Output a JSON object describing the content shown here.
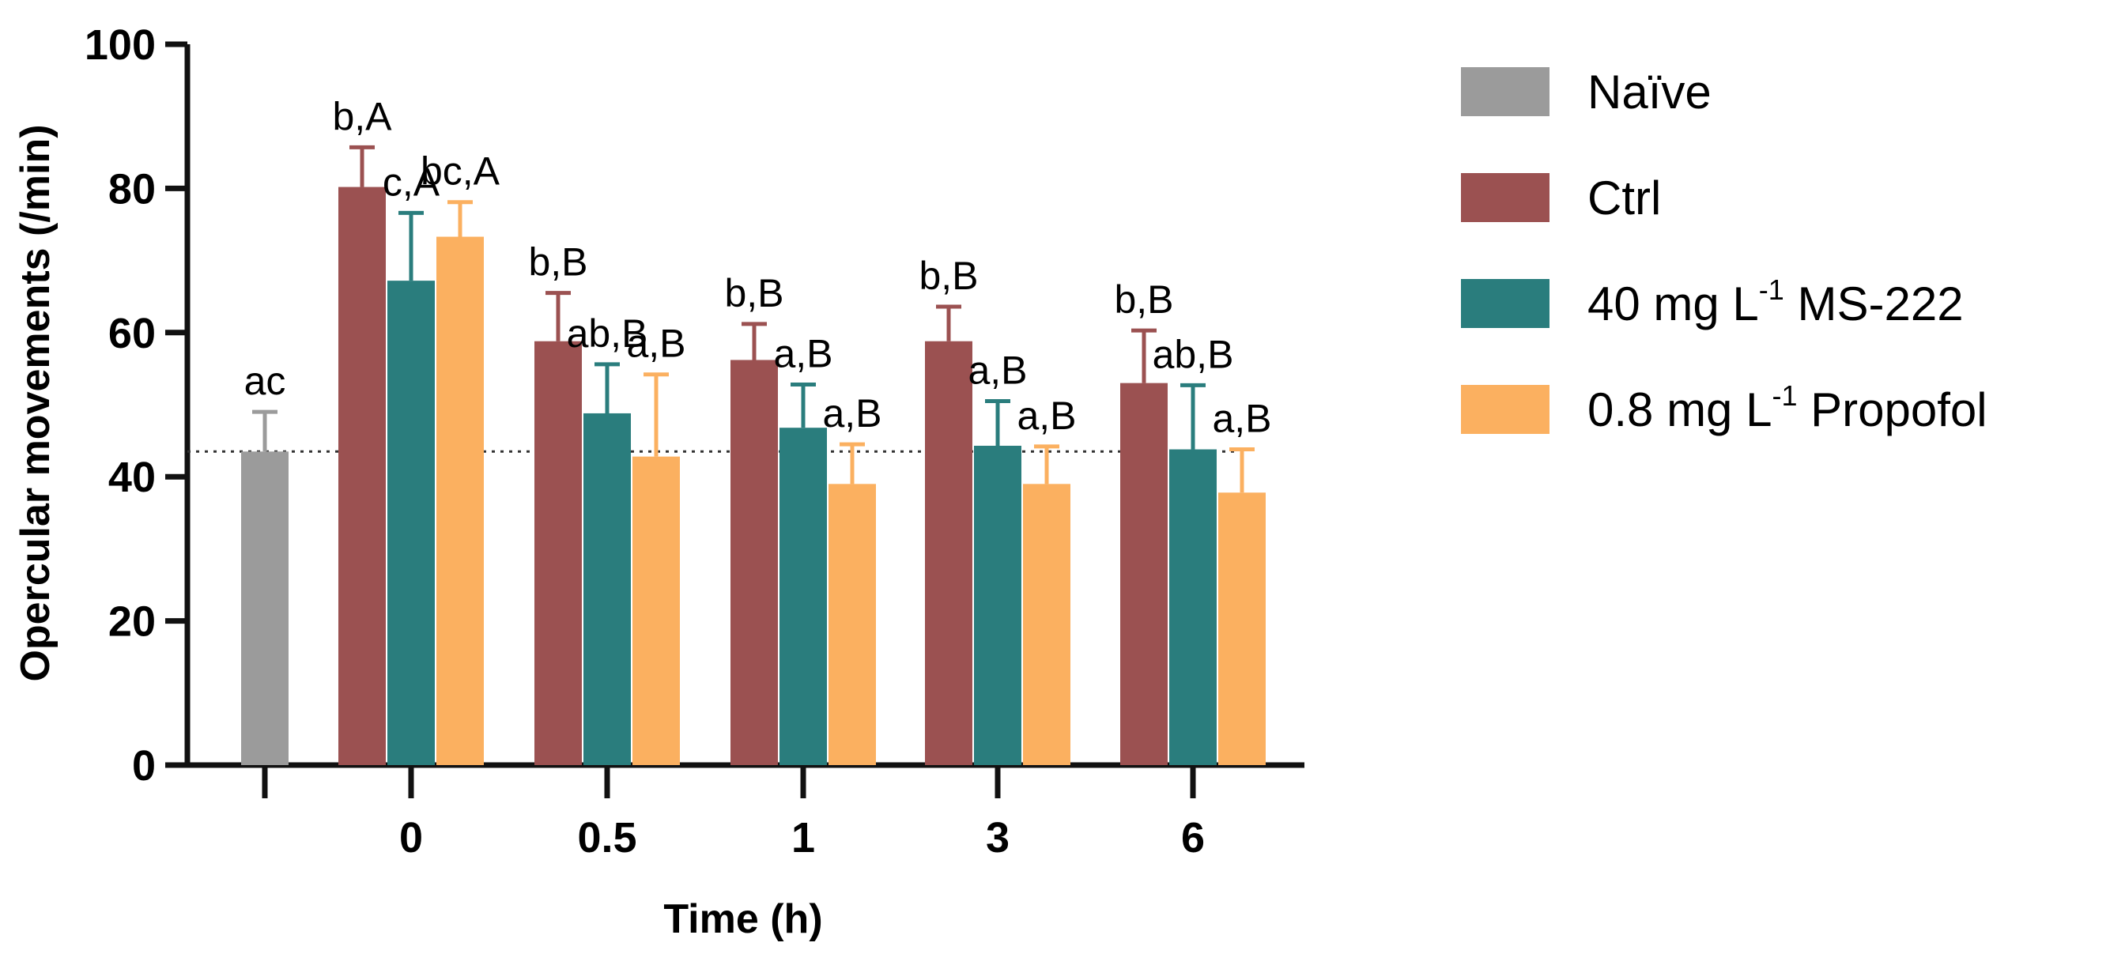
{
  "chart_data": {
    "type": "bar",
    "title": "",
    "xlabel": "Time (h)",
    "ylabel": "Opercular movements (/min)",
    "ylim": [
      0,
      100
    ],
    "yticks": [
      "0",
      "20",
      "40",
      "60",
      "80",
      "100"
    ],
    "categories": [
      "0",
      "0.5",
      "1",
      "3",
      "6"
    ],
    "naive": {
      "name": "Naïve",
      "color": "#9b9b9b",
      "value": 43.5,
      "error": 5.5,
      "label": "ac"
    },
    "reference_line": 43.5,
    "series": [
      {
        "name": "Ctrl",
        "legend_parts": [
          "Ctrl"
        ],
        "color": "#9b5151",
        "values": [
          80.2,
          58.8,
          56.2,
          58.8,
          53.0
        ],
        "errors": [
          5.5,
          6.7,
          5.0,
          4.8,
          7.3
        ],
        "labels": [
          "b,A",
          "b,B",
          "b,B",
          "b,B",
          "b,B"
        ]
      },
      {
        "name": "40 mg L-1 MS-222",
        "legend_parts": [
          "40 mg L",
          "-1",
          " MS-222"
        ],
        "color": "#2a7d7d",
        "values": [
          67.2,
          48.8,
          46.8,
          44.3,
          43.8
        ],
        "errors": [
          9.4,
          6.8,
          6.0,
          6.2,
          8.9
        ],
        "labels": [
          "c,A",
          "ab,B",
          "a,B",
          "a,B",
          "ab,B"
        ]
      },
      {
        "name": "0.8 mg L-1 Propofol",
        "legend_parts": [
          "0.8 mg L",
          "-1",
          " Propofol"
        ],
        "color": "#fbb060",
        "values": [
          73.3,
          42.8,
          39.0,
          39.0,
          37.8
        ],
        "errors": [
          4.8,
          11.4,
          5.5,
          5.2,
          6.0
        ],
        "labels": [
          "bc,A",
          "a,B",
          "a,B",
          "a,B",
          "a,B"
        ]
      }
    ],
    "legend": [
      "Naïve",
      "Ctrl",
      "40 mg L-1 MS-222",
      "0.8 mg L-1 Propofol"
    ],
    "legend_position": "right",
    "grid": false
  }
}
